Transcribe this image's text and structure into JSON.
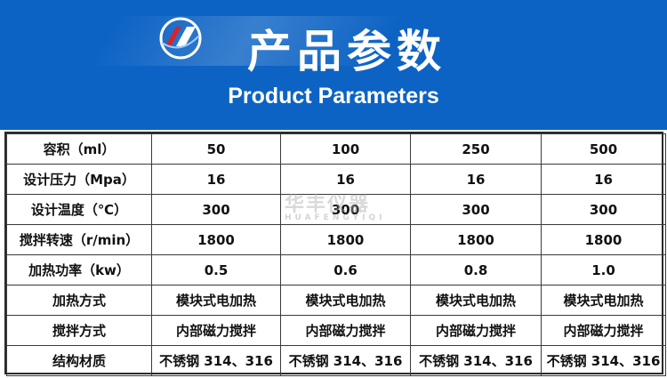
{
  "header": {
    "title_cn": "产品参数",
    "title_en": "Product Parameters"
  },
  "watermark": {
    "cn": "华丰仪器",
    "en": "HUAFENGYIQI"
  },
  "colors": {
    "banner": "#0d63c4",
    "text": "#111111"
  },
  "table": {
    "rows": [
      [
        "容积（ml）",
        "50",
        "100",
        "250",
        "500"
      ],
      [
        "设计压力（Mpa）",
        "16",
        "16",
        "16",
        "16"
      ],
      [
        "设计温度（℃）",
        "300",
        "300",
        "300",
        "300"
      ],
      [
        "搅拌转速（r/min）",
        "1800",
        "1800",
        "1800",
        "1800"
      ],
      [
        "加热功率（kw）",
        "0.5",
        "0.6",
        "0.8",
        "1.0"
      ],
      [
        "加热方式",
        "模块式电加热",
        "模块式电加热",
        "模块式电加热",
        "模块式电加热"
      ],
      [
        "搅拌方式",
        "内部磁力搅拌",
        "内部磁力搅拌",
        "内部磁力搅拌",
        "内部磁力搅拌"
      ],
      [
        "结构材质",
        "不锈钢 314、316",
        "不锈钢 314、316",
        "不锈钢 314、316",
        "不锈钢 314、316"
      ]
    ]
  }
}
